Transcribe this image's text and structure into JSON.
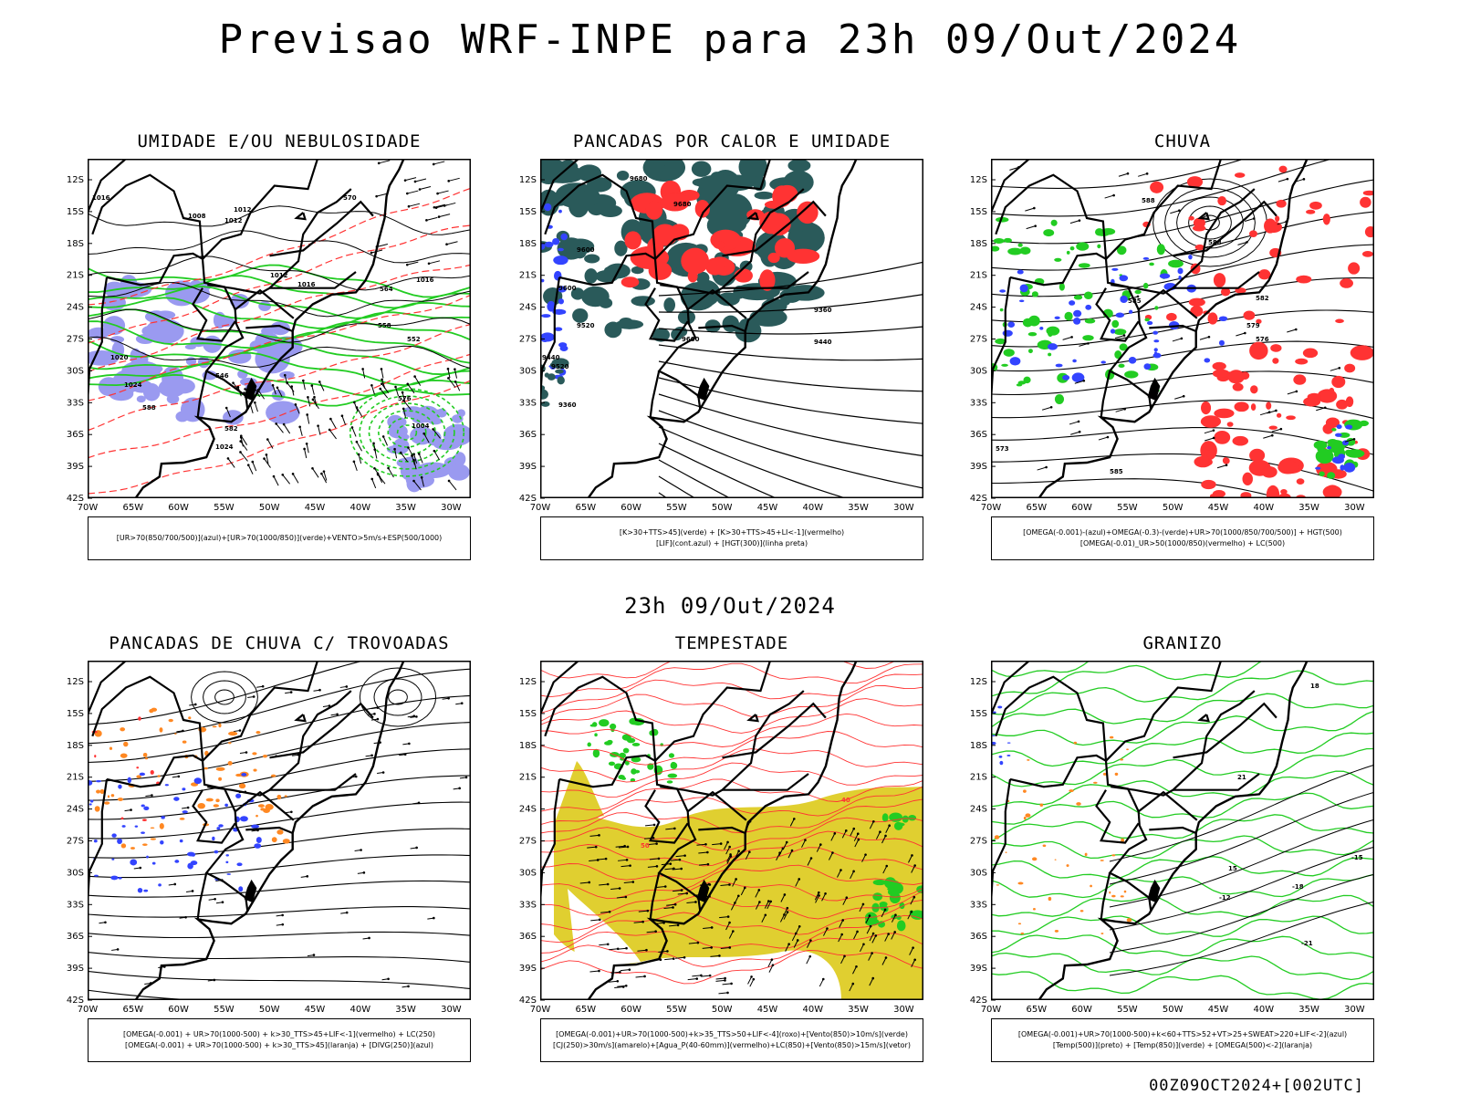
{
  "header": {
    "title": "Previsao WRF-INPE  para 23h 09/Out/2024",
    "subtitle": "23h 09/Out/2024",
    "stamp": "00Z09OCT2024+[002UTC]"
  },
  "axes": {
    "lat_labels": [
      "12S",
      "15S",
      "18S",
      "21S",
      "24S",
      "27S",
      "30S",
      "33S",
      "36S",
      "39S",
      "42S"
    ],
    "lon_labels": [
      "70W",
      "65W",
      "60W",
      "55W",
      "50W",
      "45W",
      "40W",
      "35W",
      "30W"
    ]
  },
  "colors": {
    "blue": "#3344ff",
    "green": "#22cc22",
    "red": "#ff3333",
    "orange": "#ff8822",
    "teal": "#2a5a5a",
    "yellow": "#e0cf30",
    "lavender": "#9a9af0",
    "black": "#000000"
  },
  "panels": [
    {
      "id": "umidade",
      "title": "UMIDADE E/OU NEBULOSIDADE",
      "legend": [
        "[UR>70(850/700/500)](azul)+[UR>70(1000/850)](verde)+VENTO>5m/s+ESP(500/1000)"
      ],
      "contour_labels": [
        "1016",
        "1008",
        "1012",
        "1012",
        "1012",
        "1016",
        "1016",
        "1020",
        "1024",
        "1024",
        "1004",
        "576",
        "570",
        "564",
        "558",
        "552",
        "546",
        "588",
        "582"
      ]
    },
    {
      "id": "pancadas_calor",
      "title": "PANCADAS POR CALOR E UMIDADE",
      "legend": [
        "[K>30+TTS>45](verde) + [K>30+TTS>45+LI<-1](vermelho)",
        "[LIF](cont.azul) + [HGT(300)](linha preta)"
      ],
      "contour_labels": [
        "9680",
        "9680",
        "9600",
        "9600",
        "9520",
        "9440",
        "9520",
        "9600",
        "9360",
        "9440",
        "9360"
      ]
    },
    {
      "id": "chuva",
      "title": "CHUVA",
      "legend": [
        "[OMEGA(-0.001)-(azul)+OMEGA(-0.3)-(verde)+UR>70(1000/850/700/500)] + HGT(500)",
        "[OMEGA(-0.01)_UR>50(1000/850)(vermelho) + LC(500)"
      ],
      "contour_labels": [
        "588",
        "588",
        "585",
        "582",
        "579",
        "576",
        "573",
        "585"
      ]
    },
    {
      "id": "pancadas_trovoadas",
      "title": "PANCADAS DE CHUVA C/ TROVOADAS",
      "legend": [
        "[OMEGA(-0.001) + UR>70(1000-500) + k>30_TTS>45+LIF<-1](vermelho) + LC(250)",
        "[OMEGA(-0.001) + UR>70(1000-500) + k>30_TTS>45](laranja) + [DIVG(250)](azul)"
      ],
      "contour_labels": []
    },
    {
      "id": "tempestade",
      "title": "TEMPESTADE",
      "legend": [
        "[OMEGA(-0.001)+UR>70(1000-500)+k>35_TTS>50+LIF<-4](roxo)+[Vento(850)>10m/s](verde)",
        "[CJ(250)>30m/s](amarelo)+[Agua_P(40-60mm)](vermelho)+LC(850)+[Vento(850)>15m/s](vetor)"
      ],
      "contour_labels": [
        "40",
        "50"
      ]
    },
    {
      "id": "granizo",
      "title": "GRANIZO",
      "legend": [
        "[OMEGA(-0.001)+UR>70(1000-500)+k<60+TTS>52+VT>25+SWEAT>220+LIF<-2](azul)",
        "[Temp(500)](preto) + [Temp(850)](verde) + [OMEGA(500)<-2](laranja)"
      ],
      "contour_labels": [
        "-15",
        "-18",
        "-12",
        "-21",
        "18",
        "15",
        "21"
      ]
    }
  ]
}
